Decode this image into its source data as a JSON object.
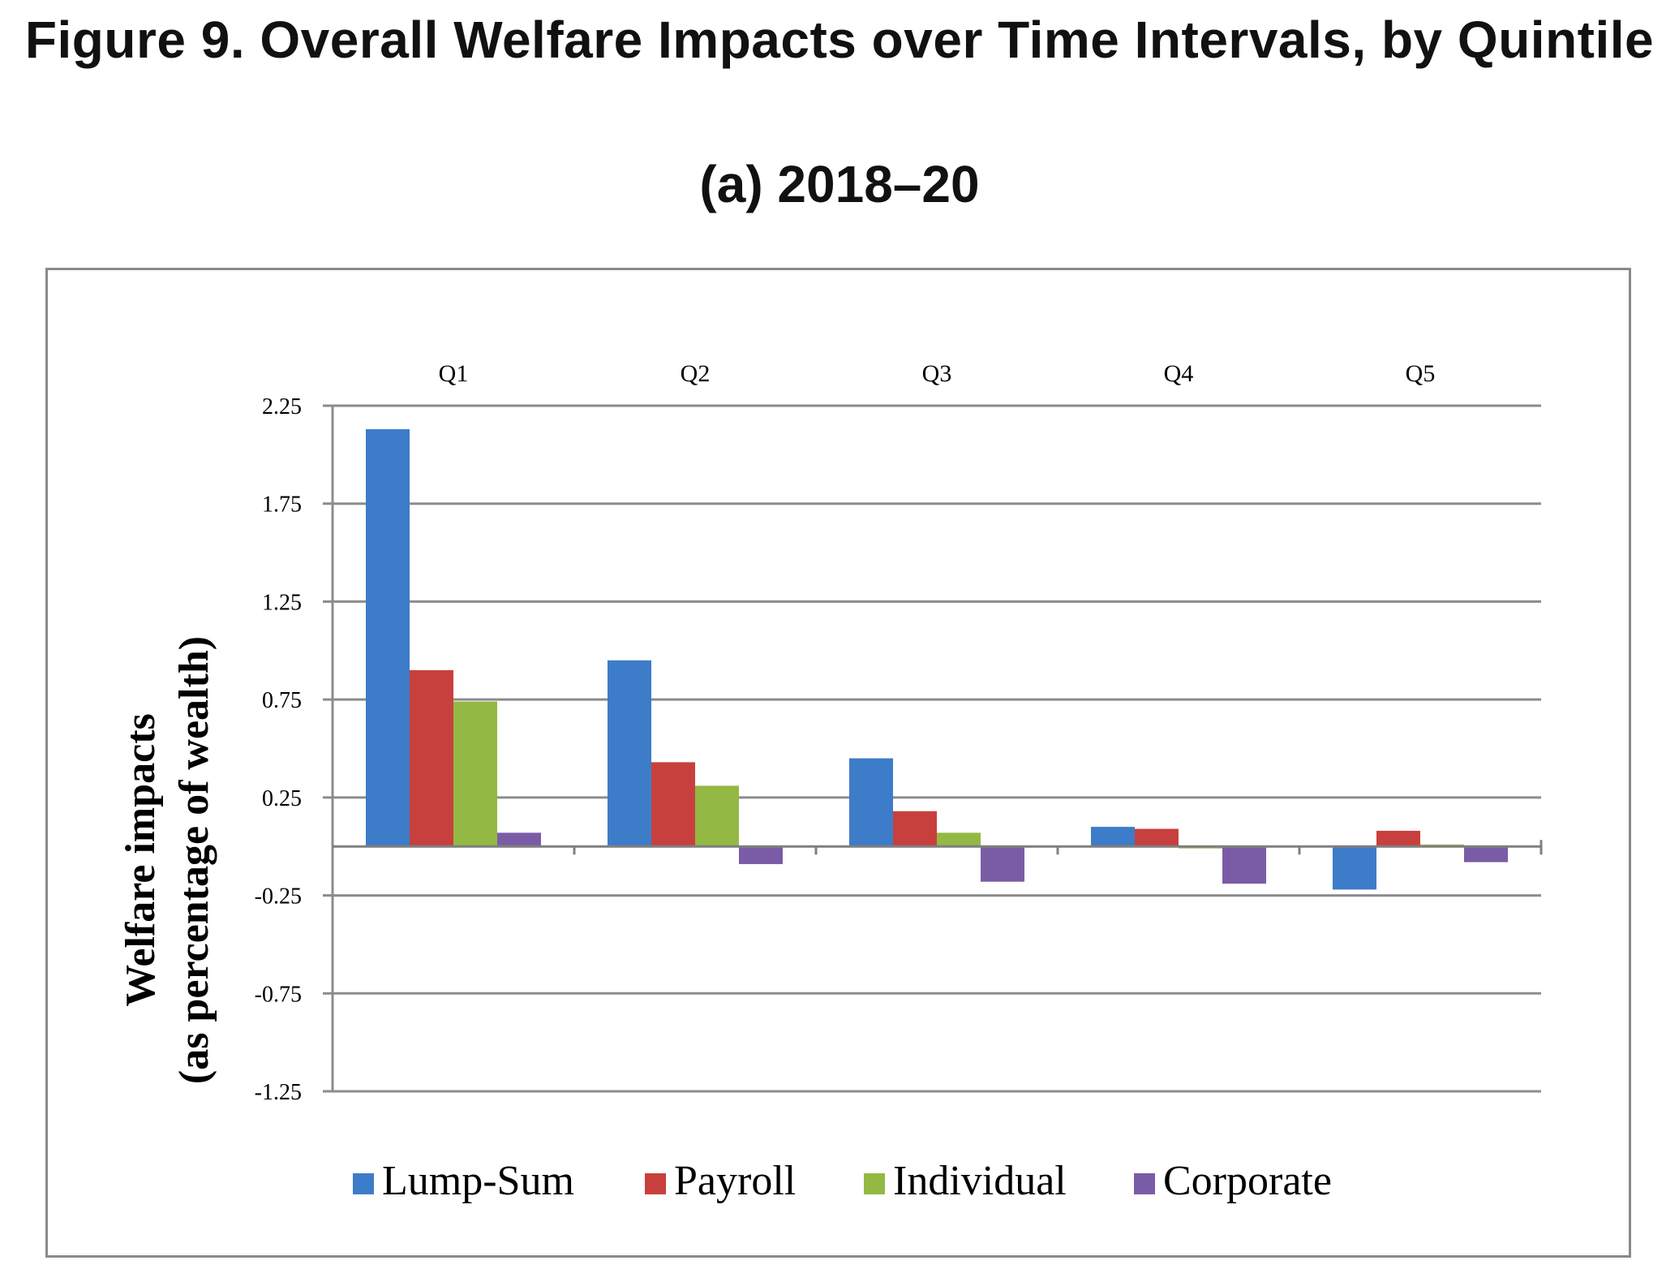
{
  "figure": {
    "title": "Figure 9. Overall Welfare Impacts over Time Intervals, by Quintile",
    "subtitle": "(a) 2018–20"
  },
  "chart_data": {
    "type": "bar",
    "categories": [
      "Q1",
      "Q2",
      "Q3",
      "Q4",
      "Q5"
    ],
    "series": [
      {
        "name": "Lump-Sum",
        "color": "#3d7cc9",
        "values": [
          2.13,
          0.95,
          0.45,
          0.1,
          -0.22
        ]
      },
      {
        "name": "Payroll",
        "color": "#c8403d",
        "values": [
          0.9,
          0.43,
          0.18,
          0.09,
          0.08
        ]
      },
      {
        "name": "Individual",
        "color": "#93b944",
        "values": [
          0.74,
          0.31,
          0.07,
          -0.01,
          0.01
        ]
      },
      {
        "name": "Corporate",
        "color": "#7a5ca6",
        "values": [
          0.07,
          -0.09,
          -0.18,
          -0.19,
          -0.08
        ]
      }
    ],
    "ylabel_line1": "Welfare impacts",
    "ylabel_line2": "(as percentage of wealth)",
    "yticks": [
      "2.25",
      "1.75",
      "1.25",
      "0.75",
      "0.25",
      "-0.25",
      "-0.75",
      "-1.25"
    ],
    "ylim": [
      -1.25,
      2.25
    ],
    "grid": true,
    "category_labels_position": "top",
    "legend_position": "bottom"
  }
}
